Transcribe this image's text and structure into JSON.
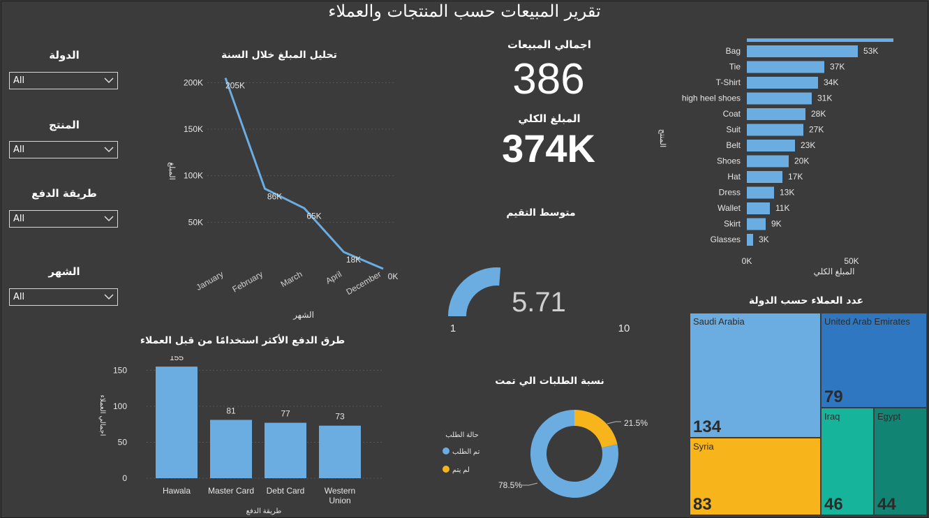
{
  "title": "تقرير المبيعات حسب المنتجات والعملاء",
  "filters": [
    {
      "label": "الدولة",
      "value": "All"
    },
    {
      "label": "المنتج",
      "value": "All"
    },
    {
      "label": "طريقة الدفع",
      "value": "All"
    },
    {
      "label": "الشهر",
      "value": "All"
    }
  ],
  "kpis": {
    "sales_label": "اجمالي المبيعات",
    "sales_value": "386",
    "amount_label": "المبلغ الكلي",
    "amount_value": "374K"
  },
  "colors": {
    "bar": "#6cade1",
    "line": "#6cade1",
    "saudi": "#6cade1",
    "uae": "#2f78c1",
    "syria": "#f7b51b",
    "iraq": "#16b49b",
    "egypt": "#118474",
    "donut_done": "#6cade1",
    "donut_not": "#f7b51b"
  },
  "chart_data": [
    {
      "type": "line",
      "title": "تحليل المبلغ خلال السنة",
      "xlabel": "الشهر",
      "ylabel": "المبلغ",
      "categories": [
        "January",
        "February",
        "March",
        "April",
        "December"
      ],
      "values": [
        205,
        86,
        65,
        18,
        0
      ],
      "data_labels": [
        "205K",
        "86K",
        "65K",
        "18K",
        "0K"
      ],
      "y_ticks": [
        "200K",
        "150K",
        "100K",
        "50K"
      ],
      "y_tick_values": [
        200,
        150,
        100,
        50
      ],
      "ylim": [
        0,
        210
      ]
    },
    {
      "type": "bar",
      "orientation": "horizontal",
      "xlabel": "المبلغ الكلي",
      "ylabel": "المنتج",
      "categories": [
        "Bag",
        "Tie",
        "T-Shirt",
        "high heel shoes",
        "Coat",
        "Suit",
        "Belt",
        "Shoes",
        "Hat",
        "Dress",
        "Wallet",
        "Skirt",
        "Glasses"
      ],
      "values": [
        53,
        37,
        34,
        31,
        28,
        27,
        23,
        20,
        17,
        13,
        11,
        9,
        3
      ],
      "data_labels": [
        "53K",
        "37K",
        "34K",
        "31K",
        "28K",
        "27K",
        "23K",
        "20K",
        "17K",
        "13K",
        "11K",
        "9K",
        "3K"
      ],
      "partial_top_bar": 70,
      "x_ticks": [
        "0K",
        "50K"
      ],
      "x_tick_values": [
        0,
        50
      ],
      "xlim": [
        0,
        70
      ]
    },
    {
      "type": "bar",
      "title": "طرق الدفع الأكثر استخدامًا من قبل العملاء",
      "xlabel": "طريقة الدفع",
      "ylabel": "اجمالي العملاء",
      "categories": [
        "Hawala",
        "Master Card",
        "Debt Card",
        "Western Union"
      ],
      "values": [
        155,
        81,
        77,
        73
      ],
      "data_labels": [
        "155",
        "81",
        "77",
        "73"
      ],
      "y_ticks": [
        "150",
        "100",
        "50",
        "0"
      ],
      "y_tick_values": [
        150,
        100,
        50,
        0
      ],
      "ylim": [
        0,
        160
      ]
    },
    {
      "type": "gauge",
      "title": "متوسط التقيم",
      "value": 5.71,
      "value_label": "5.71",
      "min": 1,
      "max": 10,
      "min_label": "1",
      "max_label": "10"
    },
    {
      "type": "pie",
      "title": "نسبة الطلبات الي تمت",
      "legend_title": "حالة الطلب",
      "slices": [
        {
          "name": "تم الطلب",
          "value": 78.5,
          "label": "78.5%"
        },
        {
          "name": "لم يتم",
          "value": 21.5,
          "label": "21.5%"
        }
      ]
    },
    {
      "type": "treemap",
      "title": "عدد العملاء حسب الدولة",
      "items": [
        {
          "name": "Saudi Arabia",
          "value": 134
        },
        {
          "name": "United Arab Emirates",
          "value": 79
        },
        {
          "name": "Syria",
          "value": 83
        },
        {
          "name": "Iraq",
          "value": 46
        },
        {
          "name": "Egypt",
          "value": 44
        }
      ]
    }
  ]
}
